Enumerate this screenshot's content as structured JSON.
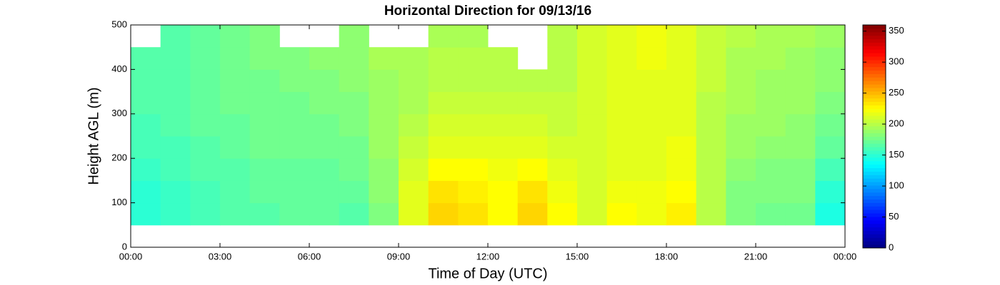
{
  "chart_data": {
    "type": "heatmap",
    "title": "Horizontal Direction for 09/13/16",
    "x_label": "Time of Day (UTC)",
    "y_label": "Height AGL (m)",
    "x": [
      0,
      1,
      2,
      3,
      4,
      5,
      6,
      7,
      8,
      9,
      10,
      11,
      12,
      13,
      14,
      15,
      16,
      17,
      18,
      19,
      20,
      21,
      22,
      23,
      24
    ],
    "y": [
      50,
      100,
      150,
      200,
      250,
      300,
      350,
      400,
      450,
      500
    ],
    "z": [
      [
        150,
        155,
        160,
        165,
        165,
        170,
        170,
        165,
        180,
        215,
        240,
        235,
        225,
        240,
        225,
        210,
        225,
        220,
        230,
        200,
        180,
        175,
        175,
        145
      ],
      [
        150,
        155,
        160,
        165,
        170,
        170,
        170,
        170,
        185,
        215,
        235,
        230,
        225,
        235,
        220,
        210,
        220,
        220,
        225,
        200,
        180,
        180,
        180,
        150
      ],
      [
        155,
        160,
        165,
        165,
        170,
        170,
        170,
        175,
        185,
        210,
        225,
        225,
        220,
        225,
        215,
        210,
        215,
        215,
        220,
        200,
        185,
        180,
        180,
        160
      ],
      [
        160,
        160,
        165,
        170,
        175,
        175,
        175,
        175,
        190,
        205,
        215,
        215,
        215,
        215,
        210,
        210,
        215,
        215,
        220,
        200,
        190,
        185,
        185,
        170
      ],
      [
        160,
        165,
        170,
        170,
        175,
        175,
        175,
        180,
        190,
        200,
        210,
        210,
        210,
        210,
        205,
        210,
        215,
        215,
        215,
        200,
        190,
        190,
        185,
        175
      ],
      [
        165,
        165,
        170,
        175,
        175,
        175,
        180,
        180,
        190,
        195,
        205,
        205,
        205,
        205,
        205,
        210,
        215,
        215,
        215,
        200,
        195,
        190,
        190,
        180
      ],
      [
        165,
        165,
        170,
        175,
        175,
        180,
        180,
        185,
        190,
        195,
        200,
        200,
        200,
        200,
        200,
        210,
        215,
        215,
        215,
        205,
        195,
        190,
        190,
        185
      ],
      [
        165,
        165,
        170,
        175,
        180,
        180,
        185,
        185,
        195,
        195,
        200,
        200,
        200,
        null,
        200,
        210,
        215,
        220,
        215,
        205,
        195,
        195,
        190,
        185
      ],
      [
        null,
        165,
        170,
        175,
        180,
        null,
        null,
        185,
        null,
        null,
        195,
        195,
        null,
        null,
        200,
        210,
        215,
        220,
        215,
        205,
        200,
        195,
        195,
        190
      ]
    ],
    "colormap": "jet",
    "clim": [
      0,
      360
    ],
    "cticks": [
      0,
      50,
      100,
      150,
      200,
      250,
      300,
      350
    ],
    "xlim": [
      0,
      24
    ],
    "xticks": [
      {
        "value": 0,
        "label": "00:00"
      },
      {
        "value": 3,
        "label": "03:00"
      },
      {
        "value": 6,
        "label": "06:00"
      },
      {
        "value": 9,
        "label": "09:00"
      },
      {
        "value": 12,
        "label": "12:00"
      },
      {
        "value": 15,
        "label": "15:00"
      },
      {
        "value": 18,
        "label": "18:00"
      },
      {
        "value": 21,
        "label": "21:00"
      },
      {
        "value": 24,
        "label": "00:00"
      }
    ],
    "ylim": [
      0,
      500
    ],
    "yticks": [
      0,
      100,
      200,
      300,
      400,
      500
    ]
  }
}
